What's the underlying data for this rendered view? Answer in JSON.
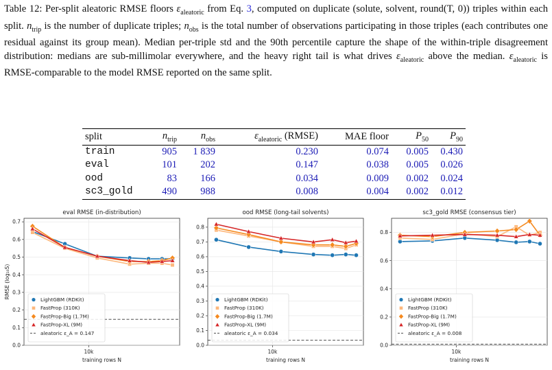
{
  "caption": {
    "label": "Table 12:",
    "text_1": " Per-split aleatoric RMSE floors ",
    "eps": "ε",
    "eps_sub": "aleatoric",
    "text_2": " from Eq. ",
    "eq_ref": "3",
    "text_3": ", computed on duplicate (solute, solvent, round(T, 0)) triples within each split. ",
    "ntrip": "n",
    "ntrip_sub": "trip",
    "text_4": " is the number of duplicate triples; ",
    "nobs": "n",
    "nobs_sub": "obs",
    "text_5": " is the total number of observations participating in those triples (each contributes one residual against its group mean). Median per-triple std and the 90th percentile capture the shape of the within-triple disagreement distribution: medians are sub-millimolar everywhere, and the heavy right tail is what drives ",
    "text_6": " above the median. ",
    "text_7": " is RMSE-comparable to the model RMSE reported on the same split."
  },
  "table": {
    "headers": {
      "split": "split",
      "n_trip": "n",
      "n_trip_sub": "trip",
      "n_obs": "n",
      "n_obs_sub": "obs",
      "eps": "ε",
      "eps_sub": "aleatoric",
      "eps_suffix": " (RMSE)",
      "mae": "MAE floor",
      "p50": "P",
      "p50_sub": "50",
      "p90": "P",
      "p90_sub": "90"
    },
    "rows": [
      {
        "split": "train",
        "n_trip": "905",
        "n_obs": "1 839",
        "eps": "0.230",
        "mae": "0.074",
        "p50": "0.005",
        "p90": "0.430"
      },
      {
        "split": "eval",
        "n_trip": "101",
        "n_obs": "202",
        "eps": "0.147",
        "mae": "0.038",
        "p50": "0.005",
        "p90": "0.026"
      },
      {
        "split": "ood",
        "n_trip": "83",
        "n_obs": "166",
        "eps": "0.034",
        "mae": "0.009",
        "p50": "0.002",
        "p90": "0.024"
      },
      {
        "split": "sc3_gold",
        "n_trip": "490",
        "n_obs": "988",
        "eps": "0.008",
        "mae": "0.004",
        "p50": "0.002",
        "p90": "0.012"
      }
    ]
  },
  "chart_data": [
    {
      "type": "line",
      "title": "eval RMSE   (in-distribution)",
      "xlabel": "training rows  N",
      "ylabel": "RMSE  (log₁₀S)",
      "x_tick_label": "10k",
      "ylim": [
        0.0,
        0.72
      ],
      "yticks": [
        "0.0",
        "0.1",
        "0.2",
        "0.3",
        "0.4",
        "0.5",
        "0.6",
        "0.7"
      ],
      "x": [
        3000,
        6000,
        12000,
        24000,
        36000,
        48000,
        60000
      ],
      "series": [
        {
          "name": "LightGBM (RDKit)",
          "color": "#1f77b4",
          "marker": "circle",
          "values": [
            0.645,
            0.575,
            0.505,
            0.495,
            0.49,
            0.49,
            0.49
          ]
        },
        {
          "name": "FastProp (310K)",
          "color": "#fdb87d",
          "marker": "square",
          "values": [
            0.64,
            0.55,
            0.495,
            0.46,
            0.465,
            0.465,
            0.455
          ]
        },
        {
          "name": "FastProp-Big (1.7M)",
          "color": "#f58a1f",
          "marker": "diamond",
          "values": [
            0.675,
            0.555,
            0.505,
            0.475,
            0.475,
            0.48,
            0.495
          ]
        },
        {
          "name": "FastProp-XL (9M)",
          "color": "#d62728",
          "marker": "triangle",
          "values": [
            0.66,
            0.555,
            0.505,
            0.48,
            0.47,
            0.475,
            0.48
          ]
        }
      ],
      "baseline": {
        "label": "aleatoric  ε_A = 0.147",
        "value": 0.147
      }
    },
    {
      "type": "line",
      "title": "ood RMSE    (long-tail solvents)",
      "xlabel": "training rows  N",
      "x_tick_label": "10k",
      "ylim": [
        0.0,
        0.86
      ],
      "yticks": [
        "0.0",
        "0.1",
        "0.2",
        "0.3",
        "0.4",
        "0.5",
        "0.6",
        "0.7",
        "0.8"
      ],
      "x": [
        3000,
        6000,
        12000,
        24000,
        36000,
        48000,
        60000
      ],
      "series": [
        {
          "name": "LightGBM (RDKit)",
          "color": "#1f77b4",
          "marker": "circle",
          "values": [
            0.715,
            0.665,
            0.635,
            0.615,
            0.61,
            0.615,
            0.61
          ]
        },
        {
          "name": "FastProp (310K)",
          "color": "#fdb87d",
          "marker": "square",
          "values": [
            0.78,
            0.74,
            0.7,
            0.67,
            0.67,
            0.655,
            0.68
          ]
        },
        {
          "name": "FastProp-Big (1.7M)",
          "color": "#f58a1f",
          "marker": "diamond",
          "values": [
            0.795,
            0.75,
            0.7,
            0.68,
            0.68,
            0.67,
            0.69
          ]
        },
        {
          "name": "FastProp-XL (9M)",
          "color": "#d62728",
          "marker": "triangle",
          "values": [
            0.82,
            0.77,
            0.725,
            0.7,
            0.715,
            0.695,
            0.705
          ]
        }
      ],
      "baseline": {
        "label": "aleatoric  ε_A = 0.034",
        "value": 0.034
      }
    },
    {
      "type": "line",
      "title": "sc3_gold RMSE   (consensus tier)",
      "xlabel": "training rows  N",
      "x_tick_label": "10k",
      "ylim": [
        0.0,
        0.9
      ],
      "yticks": [
        "0.0",
        "0.2",
        "0.4",
        "0.6",
        "0.8"
      ],
      "x": [
        3000,
        6000,
        12000,
        24000,
        36000,
        48000,
        60000
      ],
      "series": [
        {
          "name": "LightGBM (RDKit)",
          "color": "#1f77b4",
          "marker": "circle",
          "values": [
            0.735,
            0.74,
            0.76,
            0.745,
            0.73,
            0.735,
            0.72
          ]
        },
        {
          "name": "FastProp (310K)",
          "color": "#fdb87d",
          "marker": "square",
          "values": [
            0.76,
            0.75,
            0.79,
            0.77,
            0.84,
            0.78,
            0.8
          ]
        },
        {
          "name": "FastProp-Big (1.7M)",
          "color": "#f58a1f",
          "marker": "diamond",
          "values": [
            0.78,
            0.77,
            0.8,
            0.81,
            0.82,
            0.88,
            0.78
          ]
        },
        {
          "name": "FastProp-XL (9M)",
          "color": "#d62728",
          "marker": "triangle",
          "values": [
            0.775,
            0.78,
            0.785,
            0.78,
            0.77,
            0.785,
            0.78
          ]
        }
      ],
      "baseline": {
        "label": "aleatoric  ε_A = 0.008",
        "value": 0.008
      }
    }
  ]
}
